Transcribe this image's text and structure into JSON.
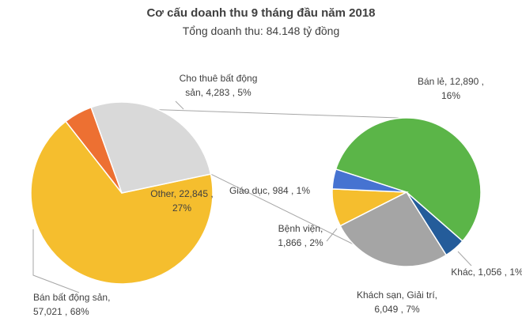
{
  "chart_data": {
    "type": "pie",
    "subtype": "pie-of-pie",
    "title": "Cơ cấu doanh thu 9 tháng đầu năm 2018",
    "subtitle": "Tổng doanh thu: 84.148 tỷ đồng",
    "main_pie": [
      {
        "label": "Bán bất động sản",
        "value": 57021,
        "percent": "68%",
        "color": "#F5BE2E",
        "label_lines": [
          "Bán bất động sản,",
          "57,021 , 68%"
        ]
      },
      {
        "label": "Cho thuê bất động sản",
        "value": 4283,
        "percent": "5%",
        "color": "#ED7032",
        "label_lines": [
          "Cho thuê bất động",
          "sản,  4,283 , 5%"
        ]
      },
      {
        "label": "Other",
        "value": 22845,
        "percent": "27%",
        "color": "#D9D9D9",
        "label_lines": [
          "Other,  22,845 ,",
          "27%"
        ]
      }
    ],
    "secondary_pie": [
      {
        "label": "Bán lẻ",
        "value": 12890,
        "percent": "16%",
        "color": "#5BB548",
        "label_lines": [
          "Bán lẻ,  12,890 ,",
          "16%"
        ]
      },
      {
        "label": "Khác",
        "value": 1056,
        "percent": "1%",
        "color": "#245C9A",
        "label_lines": [
          "Khác,  1,056 , 1%"
        ]
      },
      {
        "label": "Khách sạn, Giải trí",
        "value": 6049,
        "percent": "7%",
        "color": "#A5A5A5",
        "label_lines": [
          "Khách sạn, Giải trí,",
          "6,049 , 7%"
        ]
      },
      {
        "label": "Bệnh viện",
        "value": 1866,
        "percent": "2%",
        "color": "#F5BE2E",
        "label_lines": [
          "Bệnh viện,",
          "1,866 , 2%"
        ]
      },
      {
        "label": "Giáo dục",
        "value": 984,
        "percent": "1%",
        "color": "#4673D1",
        "label_lines": [
          "Giáo dục,  984 , 1%"
        ]
      }
    ]
  }
}
